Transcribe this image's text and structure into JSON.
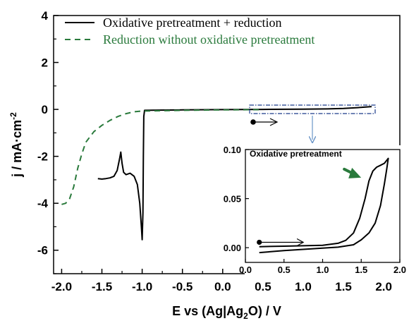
{
  "chart_data": [
    {
      "type": "line",
      "xlabel_main": "E vs (Ag|Ag",
      "xlabel_sub": "2",
      "xlabel_tail": "O) / V",
      "ylabel": "j / mA·cm",
      "ylabel_sup": "-2",
      "xlim": [
        -2.1,
        2.2
      ],
      "ylim": [
        -7,
        4
      ],
      "xticks": [
        "-2.0",
        "-1.5",
        "-1.0",
        "-0.5",
        "0.0",
        "0.5",
        "1.0",
        "1.5",
        "2.0"
      ],
      "xtick_values": [
        -2.0,
        -1.5,
        -1.0,
        -0.5,
        0.0,
        0.5,
        1.0,
        1.5,
        2.0
      ],
      "yticks": [
        "4",
        "2",
        "0",
        "-2",
        "-4",
        "-6"
      ],
      "ytick_values": [
        4,
        2,
        0,
        -2,
        -4,
        -6
      ],
      "legend_position": "top-left",
      "grid": false,
      "series": [
        {
          "name": "Oxidative pretreatment + reduction",
          "color": "#000000",
          "style": "solid",
          "points": [
            [
              -1.55,
              -2.95
            ],
            [
              -1.5,
              -2.97
            ],
            [
              -1.45,
              -2.95
            ],
            [
              -1.4,
              -2.92
            ],
            [
              -1.35,
              -2.85
            ],
            [
              -1.31,
              -2.6
            ],
            [
              -1.28,
              -2.1
            ],
            [
              -1.265,
              -1.82
            ],
            [
              -1.25,
              -2.3
            ],
            [
              -1.23,
              -2.68
            ],
            [
              -1.2,
              -2.78
            ],
            [
              -1.15,
              -2.72
            ],
            [
              -1.1,
              -2.85
            ],
            [
              -1.06,
              -3.2
            ],
            [
              -1.03,
              -4.0
            ],
            [
              -1.01,
              -5.0
            ],
            [
              -1.0,
              -5.55
            ],
            [
              -0.99,
              -4.4
            ],
            [
              -0.985,
              -2.0
            ],
            [
              -0.98,
              -0.3
            ],
            [
              -0.97,
              -0.04
            ],
            [
              -0.8,
              -0.03
            ],
            [
              -0.5,
              -0.02
            ],
            [
              0.0,
              -0.01
            ],
            [
              0.5,
              0.0
            ],
            [
              1.0,
              0.01
            ],
            [
              1.3,
              0.02
            ],
            [
              1.5,
              0.04
            ],
            [
              1.7,
              0.08
            ],
            [
              1.85,
              0.12
            ]
          ]
        },
        {
          "name": "Reduction without oxidative pretreatment",
          "color": "#2a7a3c",
          "style": "dashed",
          "points": [
            [
              -2.0,
              -4.05
            ],
            [
              -1.95,
              -4.0
            ],
            [
              -1.9,
              -3.8
            ],
            [
              -1.85,
              -3.3
            ],
            [
              -1.8,
              -2.5
            ],
            [
              -1.75,
              -1.9
            ],
            [
              -1.7,
              -1.4
            ],
            [
              -1.6,
              -0.95
            ],
            [
              -1.5,
              -0.68
            ],
            [
              -1.4,
              -0.47
            ],
            [
              -1.3,
              -0.3
            ],
            [
              -1.2,
              -0.18
            ],
            [
              -1.1,
              -0.1
            ],
            [
              -1.0,
              -0.07
            ],
            [
              -0.5,
              -0.04
            ],
            [
              0.0,
              -0.02
            ],
            [
              0.5,
              -0.01
            ]
          ]
        }
      ],
      "annotations": {
        "scan_direction_arrow": "right",
        "zoom_box_color": "#1a3a8a",
        "zoom_arrow_color": "#6a95c8"
      }
    },
    {
      "type": "line",
      "title": "Oxidative pretreatment",
      "xlim": [
        0.0,
        2.0
      ],
      "ylim": [
        -0.015,
        0.1
      ],
      "xticks": [
        "0.0",
        "0.5",
        "1.0",
        "1.5",
        "2.0"
      ],
      "xtick_values": [
        0.0,
        0.5,
        1.0,
        1.5,
        2.0
      ],
      "yticks": [
        "0.10",
        "0.05",
        "0.00"
      ],
      "ytick_values": [
        0.1,
        0.05,
        0.0
      ],
      "series": [
        {
          "color": "#000000",
          "style": "solid",
          "points": [
            [
              0.18,
              0.001
            ],
            [
              0.5,
              0.0015
            ],
            [
              1.0,
              0.0025
            ],
            [
              1.2,
              0.0045
            ],
            [
              1.3,
              0.0075
            ],
            [
              1.4,
              0.015
            ],
            [
              1.48,
              0.03
            ],
            [
              1.55,
              0.05
            ],
            [
              1.6,
              0.068
            ],
            [
              1.65,
              0.078
            ],
            [
              1.7,
              0.082
            ],
            [
              1.75,
              0.084
            ],
            [
              1.8,
              0.086
            ],
            [
              1.85,
              0.091
            ],
            [
              1.83,
              0.08
            ],
            [
              1.8,
              0.065
            ],
            [
              1.75,
              0.043
            ],
            [
              1.68,
              0.025
            ],
            [
              1.6,
              0.015
            ],
            [
              1.5,
              0.008
            ],
            [
              1.4,
              0.003
            ],
            [
              1.2,
              0.0005
            ],
            [
              1.0,
              -0.0005
            ],
            [
              0.5,
              -0.003
            ],
            [
              0.18,
              -0.005
            ]
          ]
        }
      ],
      "annotations": {
        "scan_direction_arrow": "right",
        "highlight_arrow_color": "#2a7a3c"
      }
    }
  ]
}
